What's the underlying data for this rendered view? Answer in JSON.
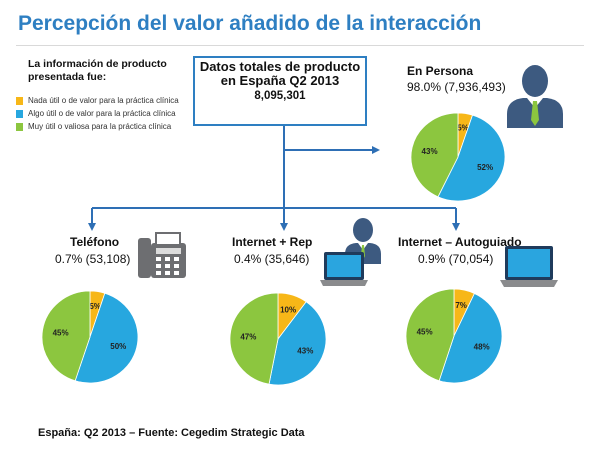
{
  "page": {
    "title": "Percepción del valor añadido de la interacción",
    "footer": "España: Q2 2013 – Fuente: Cegedim Strategic Data"
  },
  "legend": {
    "heading": "La información de producto presentada fue:",
    "items": [
      {
        "label": "Nada útil o de valor para la práctica clínica",
        "color": "#f7b718"
      },
      {
        "label": "Algo útil o de valor para la práctica clínica",
        "color": "#27a7df"
      },
      {
        "label": "Muy útil o valiosa para la práctica clínica",
        "color": "#8cc63f"
      }
    ]
  },
  "totals": {
    "label": "Datos totales de producto en España Q2 2013",
    "value": "8,095,301"
  },
  "groups": [
    {
      "key": "en_persona",
      "title": "En Persona",
      "stat": "98.0% (7,936,493)",
      "icon": "person-icon"
    },
    {
      "key": "telefono",
      "title": "Teléfono",
      "stat": "0.7% (53,108)",
      "icon": "phone-icon"
    },
    {
      "key": "internet_rep",
      "title": "Internet + Rep",
      "stat": "0.4% (35,646)",
      "icon": "laptop-person-icon"
    },
    {
      "key": "internet_auto",
      "title": "Internet – Autoguiado",
      "stat": "0.9% (70,054)",
      "icon": "laptop-icon"
    }
  ],
  "chart_data": [
    {
      "type": "pie",
      "name": "En Persona",
      "categories": [
        "Nada útil o de valor para la práctica clínica",
        "Algo útil o de valor para la práctica clínica",
        "Muy útil o valiosa para la práctica clínica"
      ],
      "values": [
        5,
        52,
        43
      ],
      "labels": [
        "5%",
        "52%",
        "43%"
      ]
    },
    {
      "type": "pie",
      "name": "Teléfono",
      "categories": [
        "Nada útil o de valor para la práctica clínica",
        "Algo útil o de valor para la práctica clínica",
        "Muy útil o valiosa para la práctica clínica"
      ],
      "values": [
        5,
        50,
        45
      ],
      "labels": [
        "5%",
        "50%",
        "45%"
      ]
    },
    {
      "type": "pie",
      "name": "Internet + Rep",
      "categories": [
        "Nada útil o de valor para la práctica clínica",
        "Algo útil o de valor para la práctica clínica",
        "Muy útil o valiosa para la práctica clínica"
      ],
      "values": [
        10,
        43,
        47
      ],
      "labels": [
        "10%",
        "43%",
        "47%"
      ]
    },
    {
      "type": "pie",
      "name": "Internet – Autoguiado",
      "categories": [
        "Nada útil o de valor para la práctica clínica",
        "Algo útil o de valor para la práctica clínica",
        "Muy útil o valiosa para la práctica clínica"
      ],
      "values": [
        7,
        48,
        45
      ],
      "labels": [
        "7%",
        "48%",
        "45%"
      ]
    }
  ],
  "colors": {
    "accent": "#2e7fc2",
    "connector": "#2e6fb5",
    "nada": "#f7b718",
    "algo": "#27a7df",
    "muy": "#8cc63f"
  }
}
